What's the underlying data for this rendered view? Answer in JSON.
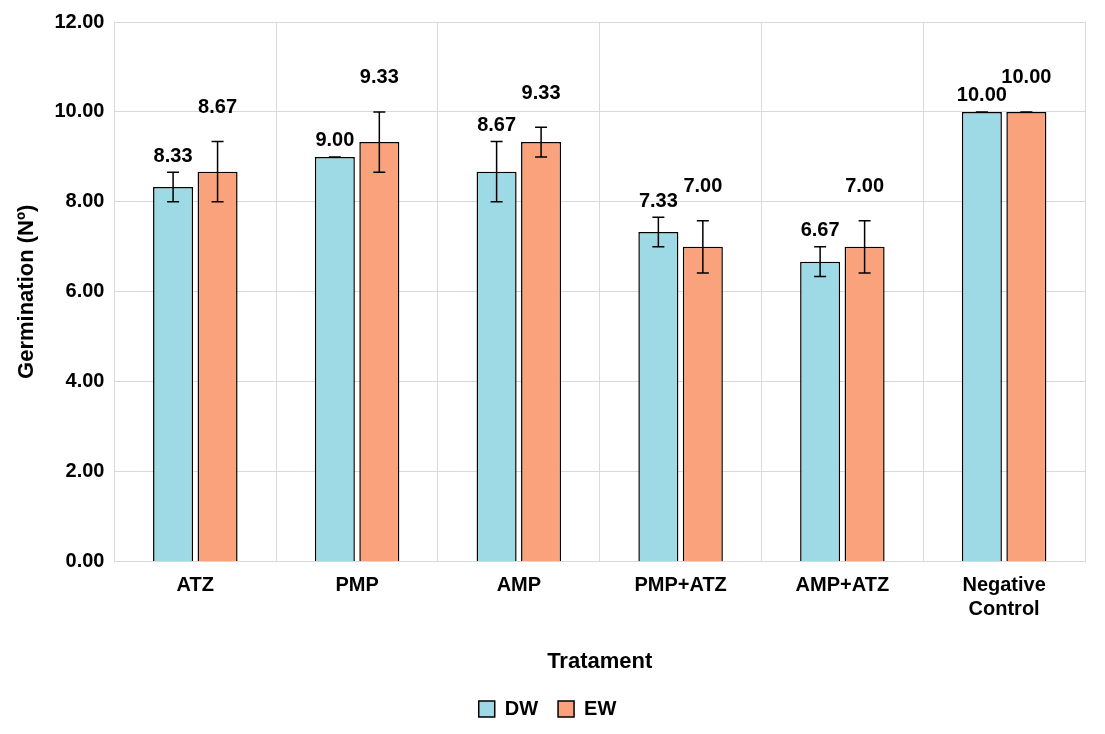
{
  "chart_data": {
    "type": "bar",
    "xlabel": "Tratament",
    "ylabel": "Germination (Nº)",
    "categories": [
      "ATZ",
      "PMP",
      "AMP",
      "PMP+ATZ",
      "AMP+ATZ",
      "Negative Control"
    ],
    "series": [
      {
        "name": "DW",
        "color": "#9ed9e6",
        "values": [
          8.33,
          9.0,
          8.67,
          7.33,
          6.67,
          10.0
        ],
        "errors": [
          0.33,
          0,
          0.67,
          0.33,
          0.33,
          0
        ],
        "value_labels": [
          "8.33",
          "9.00",
          "8.67",
          "7.33",
          "6.67",
          "10.00"
        ]
      },
      {
        "name": "EW",
        "color": "#f9a27c",
        "values": [
          8.67,
          9.33,
          9.33,
          7.0,
          7.0,
          10.0
        ],
        "errors": [
          0.67,
          0.67,
          0.33,
          0.58,
          0.58,
          0
        ],
        "value_labels": [
          "8.67",
          "9.33",
          "9.33",
          "7.00",
          "7.00",
          "10.00"
        ]
      }
    ],
    "ylim": [
      0,
      12
    ],
    "yticks": [
      {
        "value": 0,
        "label": "0.00"
      },
      {
        "value": 2,
        "label": "2.00"
      },
      {
        "value": 4,
        "label": "4.00"
      },
      {
        "value": 6,
        "label": "6.00"
      },
      {
        "value": 8,
        "label": "8.00"
      },
      {
        "value": 10,
        "label": "10.00"
      },
      {
        "value": 12,
        "label": "12.00"
      }
    ],
    "grid": true,
    "legend": "bottom"
  }
}
